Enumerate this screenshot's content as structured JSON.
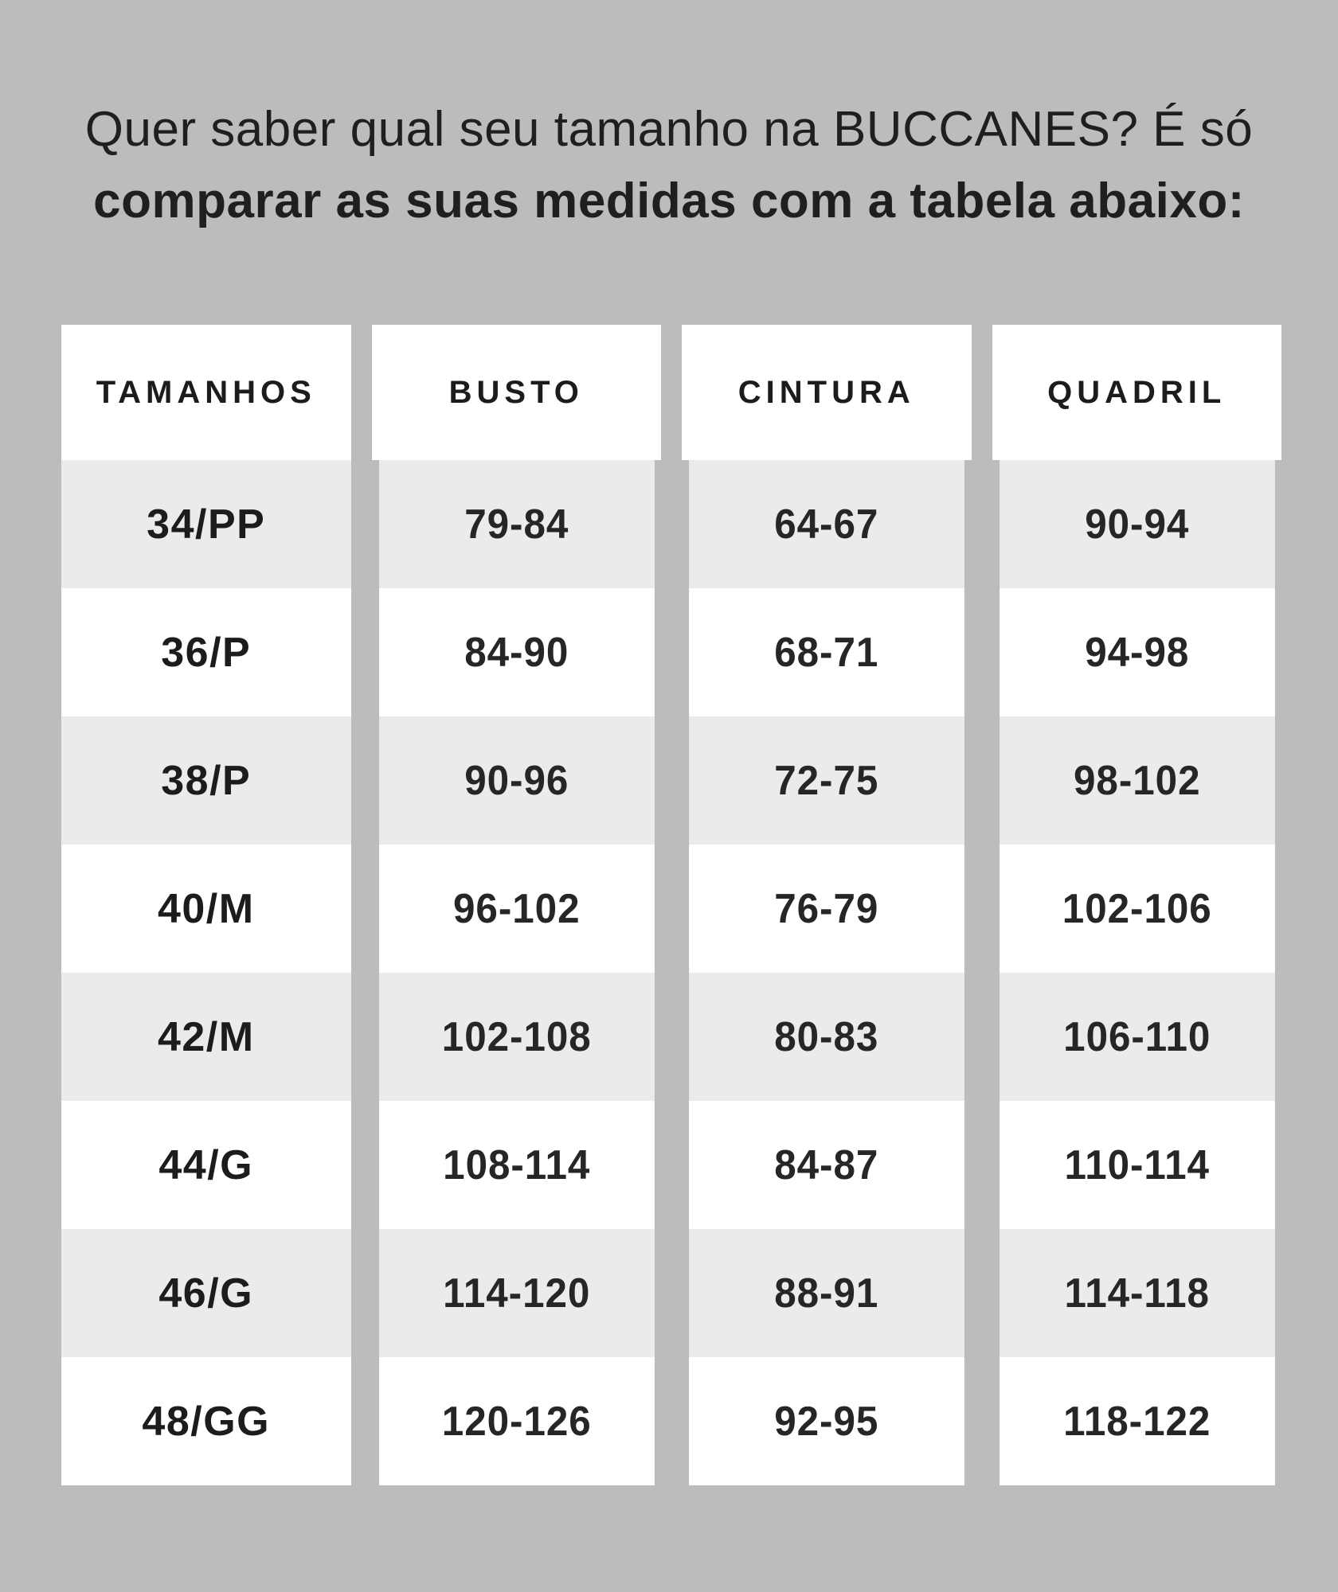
{
  "page": {
    "background": "#bcbcbc",
    "title_line1": "Quer saber qual seu tamanho na BUCCANES? É só",
    "title_line2": "comparar as suas medidas com a tabela abaixo:"
  },
  "chart_data": {
    "type": "table",
    "title": "Quer saber qual seu tamanho na BUCCANES? É só comparar as suas medidas com a tabela abaixo:",
    "columns": [
      "TAMANHOS",
      "BUSTO",
      "CINTURA",
      "QUADRIL"
    ],
    "rows": [
      [
        "34/PP",
        "79-84",
        "64-67",
        "90-94"
      ],
      [
        "36/P",
        "84-90",
        "68-71",
        "94-98"
      ],
      [
        "38/P",
        "90-96",
        "72-75",
        "98-102"
      ],
      [
        "40/M",
        "96-102",
        "76-79",
        "102-106"
      ],
      [
        "42/M",
        "102-108",
        "80-83",
        "106-110"
      ],
      [
        "44/G",
        "108-114",
        "84-87",
        "110-114"
      ],
      [
        "46/G",
        "114-120",
        "88-91",
        "114-118"
      ],
      [
        "48/GG",
        "120-126",
        "92-95",
        "118-122"
      ]
    ],
    "layout": {
      "stripe_color": "#ebebeb",
      "base_color": "#ffffff",
      "background_color": "#bcbcbc",
      "text_color": "#212121",
      "header_row_background": "#ffffff",
      "striped_rows": "odd data rows shaded"
    }
  }
}
